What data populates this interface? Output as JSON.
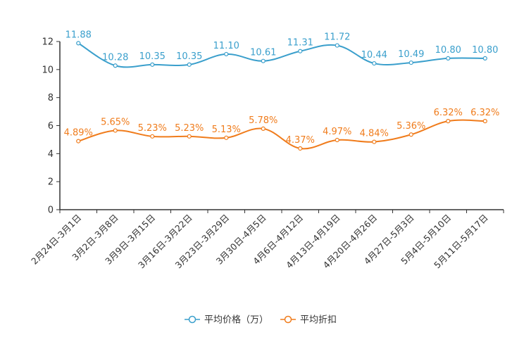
{
  "chart_data": {
    "type": "line",
    "title": "",
    "xlabel": "",
    "ylabel": "",
    "ylim": [
      0,
      12
    ],
    "yticks": [
      0,
      2,
      4,
      6,
      8,
      10,
      12
    ],
    "categories": [
      "2月24日-3月1日",
      "3月2日-3月8日",
      "3月9日-3月15日",
      "3月16日-3月22日",
      "3月23日-3月29日",
      "3月30日-4月5日",
      "4月6日-4月12日",
      "4月13日-4月19日",
      "4月20日-4月26日",
      "4月27日-5月3日",
      "5月4日-5月10日",
      "5月11日-5月17日"
    ],
    "series": [
      {
        "name": "平均价格（万）",
        "color": "#3a9fcc",
        "values": [
          11.88,
          10.28,
          10.35,
          10.35,
          11.1,
          10.61,
          11.31,
          11.72,
          10.44,
          10.49,
          10.8,
          10.8
        ],
        "labels": [
          "11.88",
          "10.28",
          "10.35",
          "10.35",
          "11.10",
          "10.61",
          "11.31",
          "11.72",
          "10.44",
          "10.49",
          "10.80",
          "10.80"
        ]
      },
      {
        "name": "平均折扣",
        "color": "#f07c1c",
        "values": [
          4.89,
          5.65,
          5.23,
          5.23,
          5.13,
          5.78,
          4.37,
          4.97,
          4.84,
          5.36,
          6.32,
          6.32
        ],
        "labels": [
          "4.89%",
          "5.65%",
          "5.23%",
          "5.23%",
          "5.13%",
          "5.78%",
          "4.37%",
          "4.97%",
          "4.84%",
          "5.36%",
          "6.32%",
          "6.32%"
        ]
      }
    ],
    "legend_position": "bottom-center",
    "grid": false
  }
}
